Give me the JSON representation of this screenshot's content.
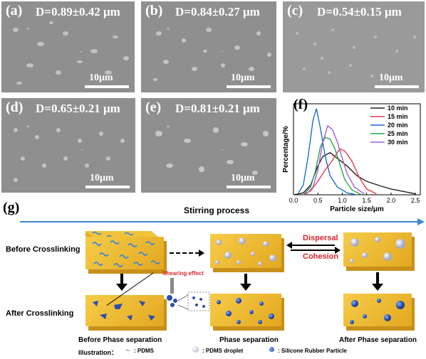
{
  "sem_panels": [
    {
      "label": "(a)",
      "d": "D=0.89±0.42 μm",
      "scale": "10μm"
    },
    {
      "label": "(b)",
      "d": "D=0.84±0.27 μm",
      "scale": "10μm"
    },
    {
      "label": "(c)",
      "d": "D=0.54±0.15 μm",
      "scale": "10μm"
    },
    {
      "label": "(d)",
      "d": "D=0.65±0.21 μm",
      "scale": "10μm"
    },
    {
      "label": "(e)",
      "d": "D=0.81±0.21 μm",
      "scale": "10μm"
    }
  ],
  "chart_panel_label": "(f)",
  "chart_data": {
    "type": "line",
    "xlabel": "Particle size/μm",
    "ylabel": "Percentage/%",
    "xlim": [
      0.0,
      2.6
    ],
    "xticks": [
      "0.0",
      "0.5",
      "1.0",
      "1.5",
      "2.0",
      "2.5"
    ],
    "legend_position": "top-right",
    "series": [
      {
        "name": "10 min",
        "color": "#222222",
        "x": [
          0.0,
          0.2,
          0.35,
          0.5,
          0.6,
          0.75,
          0.9,
          1.1,
          1.3,
          1.5,
          1.8,
          2.0,
          2.2,
          2.4,
          2.5
        ],
        "y": [
          0,
          2,
          10,
          30,
          40,
          44,
          38,
          30,
          20,
          14,
          9,
          6,
          4,
          2,
          1
        ]
      },
      {
        "name": "15 min",
        "color": "#e8384a",
        "x": [
          0.2,
          0.35,
          0.5,
          0.65,
          0.8,
          0.95,
          1.05,
          1.2,
          1.35,
          1.5,
          1.7
        ],
        "y": [
          0,
          4,
          14,
          26,
          36,
          48,
          46,
          35,
          18,
          6,
          1
        ]
      },
      {
        "name": "20 min",
        "color": "#1b6fd1",
        "x": [
          0.1,
          0.2,
          0.3,
          0.4,
          0.47,
          0.55,
          0.65,
          0.75,
          0.9,
          1.1,
          1.3
        ],
        "y": [
          2,
          10,
          40,
          78,
          90,
          70,
          40,
          20,
          8,
          2,
          0
        ]
      },
      {
        "name": "25 min",
        "color": "#2aa84a",
        "x": [
          0.2,
          0.35,
          0.45,
          0.55,
          0.65,
          0.75,
          0.85,
          0.95,
          1.05,
          1.2,
          1.4
        ],
        "y": [
          0,
          8,
          25,
          50,
          60,
          58,
          48,
          32,
          16,
          5,
          0
        ]
      },
      {
        "name": "30 min",
        "color": "#a65bd6",
        "x": [
          0.25,
          0.4,
          0.5,
          0.6,
          0.7,
          0.8,
          0.9,
          1.0,
          1.1,
          1.25,
          1.45
        ],
        "y": [
          0,
          8,
          26,
          55,
          72,
          68,
          55,
          38,
          22,
          8,
          1
        ]
      }
    ]
  },
  "schematic": {
    "panel_label": "(g)",
    "stirring": "Stirring process",
    "before_crosslinking": "Before Crosslinking",
    "after_crosslinking": "After Crosslinking",
    "shearing": "Shearing effect",
    "dispersal": "Dispersal",
    "cohesion": "Cohesion",
    "stage1": "Before Phase separation",
    "stage2": "Phase separation",
    "stage3": "After Phase separation",
    "illustration": "Illustration：",
    "legend_pdms": ": PDMS",
    "legend_droplet": ": PDMS droplet",
    "legend_particle": ": Silicone Rubber Particle",
    "colors": {
      "block_top": "#f3c33a",
      "block_side": "#d9a21f",
      "arrow_blue": "#3d86d4",
      "red": "#d8262c"
    }
  }
}
